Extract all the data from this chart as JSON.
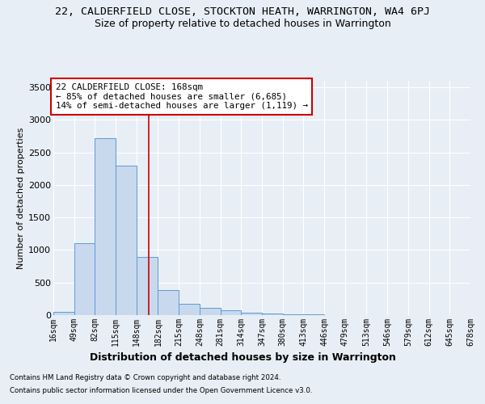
{
  "title_line1": "22, CALDERFIELD CLOSE, STOCKTON HEATH, WARRINGTON, WA4 6PJ",
  "title_line2": "Size of property relative to detached houses in Warrington",
  "xlabel": "Distribution of detached houses by size in Warrington",
  "ylabel": "Number of detached properties",
  "footnote1": "Contains HM Land Registry data © Crown copyright and database right 2024.",
  "footnote2": "Contains public sector information licensed under the Open Government Licence v3.0.",
  "annotation_line1": "22 CALDERFIELD CLOSE: 168sqm",
  "annotation_line2": "← 85% of detached houses are smaller (6,685)",
  "annotation_line3": "14% of semi-detached houses are larger (1,119) →",
  "bar_color": "#c9d9ed",
  "bar_edge_color": "#5b9bd5",
  "vline_x": 168,
  "vline_color": "#cc0000",
  "bin_edges": [
    16,
    49,
    82,
    115,
    148,
    182,
    215,
    248,
    281,
    314,
    347,
    380,
    413,
    446,
    479,
    513,
    546,
    579,
    612,
    645,
    678
  ],
  "bar_heights": [
    50,
    1100,
    2720,
    2300,
    900,
    390,
    175,
    110,
    70,
    35,
    20,
    12,
    8,
    6,
    5,
    4,
    3,
    2,
    1,
    1
  ],
  "ylim": [
    0,
    3600
  ],
  "yticks": [
    0,
    500,
    1000,
    1500,
    2000,
    2500,
    3000,
    3500
  ],
  "background_color": "#e8eef5",
  "plot_background": "#e8eef5",
  "grid_color": "#ffffff",
  "title1_fontsize": 9.5,
  "title2_fontsize": 9,
  "annotation_fontsize": 7.8,
  "xlabel_fontsize": 9,
  "ylabel_fontsize": 8,
  "xtick_fontsize": 7,
  "ytick_fontsize": 8
}
